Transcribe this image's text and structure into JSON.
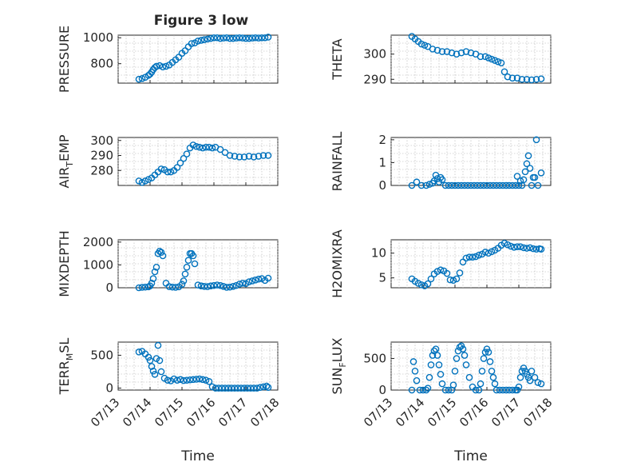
{
  "figure": {
    "title": "Figure 3 low",
    "accent_color": "#0072bd"
  },
  "chart_data": [
    {
      "type": "scatter",
      "ylabel": "PRESSURE",
      "xlabel": "",
      "xlim": [
        0,
        5
      ],
      "ylim": [
        650,
        1020
      ],
      "yticks": [
        800,
        1000
      ],
      "xticks": [
        0,
        1,
        2,
        3,
        4,
        5
      ],
      "show_x_ticklabels": false,
      "grid": true,
      "x": [
        0.65,
        0.75,
        0.85,
        0.95,
        1.0,
        1.05,
        1.1,
        1.15,
        1.2,
        1.3,
        1.4,
        1.5,
        1.6,
        1.7,
        1.8,
        1.9,
        2.0,
        2.1,
        2.2,
        2.3,
        2.4,
        2.5,
        2.6,
        2.7,
        2.8,
        2.9,
        3.0,
        3.1,
        3.2,
        3.3,
        3.4,
        3.5,
        3.6,
        3.7,
        3.8,
        3.9,
        4.0,
        4.1,
        4.2,
        4.3,
        4.4,
        4.5,
        4.6,
        4.7
      ],
      "y": [
        680,
        685,
        695,
        710,
        720,
        735,
        755,
        770,
        780,
        785,
        775,
        780,
        790,
        810,
        830,
        850,
        880,
        900,
        930,
        955,
        960,
        975,
        980,
        985,
        990,
        995,
        1000,
        1000,
        995,
        998,
        1000,
        995,
        995,
        998,
        1000,
        998,
        995,
        995,
        998,
        1000,
        998,
        1000,
        1000,
        1005
      ]
    },
    {
      "type": "scatter",
      "ylabel": "THETA",
      "xlabel": "",
      "xlim": [
        0,
        5
      ],
      "ylim": [
        288.5,
        307.5
      ],
      "yticks": [
        290,
        300
      ],
      "xticks": [
        0,
        1,
        2,
        3,
        4,
        5
      ],
      "show_x_ticklabels": false,
      "grid": true,
      "x": [
        0.65,
        0.75,
        0.85,
        0.95,
        1.05,
        1.15,
        1.3,
        1.45,
        1.6,
        1.75,
        1.9,
        2.05,
        2.2,
        2.35,
        2.5,
        2.65,
        2.8,
        2.95,
        3.05,
        3.15,
        3.25,
        3.35,
        3.45,
        3.55,
        3.65,
        3.8,
        3.95,
        4.1,
        4.25,
        4.4,
        4.55,
        4.7
      ],
      "y": [
        307,
        306,
        305,
        304,
        303.5,
        303,
        302,
        301.5,
        301,
        301,
        300.5,
        300,
        300.5,
        301,
        300.5,
        300,
        299,
        299,
        298.5,
        298,
        297.5,
        297,
        296.5,
        293,
        291,
        290.5,
        290.5,
        290,
        290,
        289.8,
        290,
        290.2
      ]
    },
    {
      "type": "scatter",
      "ylabel": "AIR_TEMP",
      "ylabel_main": "AIR",
      "ylabel_sub": "T",
      "ylabel_tail": "EMP",
      "xlabel": "",
      "xlim": [
        0,
        5
      ],
      "ylim": [
        270,
        302
      ],
      "yticks": [
        280,
        290,
        300
      ],
      "xticks": [
        0,
        1,
        2,
        3,
        4,
        5
      ],
      "show_x_ticklabels": false,
      "grid": true,
      "x": [
        0.65,
        0.75,
        0.85,
        0.95,
        1.05,
        1.15,
        1.25,
        1.35,
        1.45,
        1.55,
        1.65,
        1.75,
        1.85,
        1.95,
        2.05,
        2.15,
        2.25,
        2.35,
        2.45,
        2.55,
        2.65,
        2.75,
        2.85,
        2.95,
        3.05,
        3.2,
        3.35,
        3.5,
        3.65,
        3.8,
        3.95,
        4.1,
        4.25,
        4.4,
        4.55,
        4.7
      ],
      "y": [
        273,
        272,
        273,
        274,
        275,
        277,
        279,
        281,
        280.5,
        279,
        279,
        280,
        282,
        285,
        288,
        291,
        295,
        297,
        296,
        295.5,
        295,
        295.5,
        295.5,
        295,
        295.5,
        294,
        292,
        290,
        289.5,
        289,
        289,
        289.5,
        289,
        289.5,
        290,
        290
      ]
    },
    {
      "type": "scatter",
      "ylabel": "RAINFALL",
      "xlabel": "",
      "xlim": [
        0,
        5
      ],
      "ylim": [
        0,
        2.1
      ],
      "yticks": [
        0,
        1,
        2
      ],
      "xticks": [
        0,
        1,
        2,
        3,
        4,
        5
      ],
      "show_x_ticklabels": false,
      "grid": true,
      "x": [
        0.65,
        0.8,
        0.95,
        1.1,
        1.2,
        1.3,
        1.35,
        1.4,
        1.45,
        1.5,
        1.55,
        1.6,
        1.7,
        1.8,
        1.9,
        2.0,
        2.1,
        2.2,
        2.3,
        2.4,
        2.5,
        2.6,
        2.7,
        2.8,
        2.9,
        3.0,
        3.1,
        3.2,
        3.3,
        3.4,
        3.5,
        3.6,
        3.7,
        3.8,
        3.9,
        3.95,
        4.0,
        4.05,
        4.1,
        4.15,
        4.2,
        4.25,
        4.3,
        4.35,
        4.4,
        4.45,
        4.5,
        4.55,
        4.6,
        4.7
      ],
      "y": [
        0,
        0.15,
        0,
        0,
        0.05,
        0.1,
        0.2,
        0.45,
        0.3,
        0.15,
        0.35,
        0.25,
        0,
        0,
        0,
        0,
        0,
        0,
        0,
        0,
        0,
        0,
        0,
        0,
        0,
        0,
        0,
        0,
        0,
        0,
        0,
        0,
        0,
        0,
        0,
        0.4,
        0,
        0.2,
        0,
        0.25,
        0.6,
        0.95,
        1.3,
        0.75,
        0,
        0.35,
        0.35,
        2.0,
        0,
        0.55
      ]
    },
    {
      "type": "scatter",
      "ylabel": "MIXDEPTH",
      "xlabel": "",
      "xlim": [
        0,
        5
      ],
      "ylim": [
        0,
        2100
      ],
      "yticks": [
        0,
        1000,
        2000
      ],
      "xticks": [
        0,
        1,
        2,
        3,
        4,
        5
      ],
      "show_x_ticklabels": false,
      "grid": true,
      "x": [
        0.65,
        0.75,
        0.85,
        0.95,
        1.0,
        1.05,
        1.1,
        1.15,
        1.2,
        1.25,
        1.3,
        1.35,
        1.4,
        1.5,
        1.6,
        1.7,
        1.8,
        1.9,
        2.0,
        2.05,
        2.1,
        2.15,
        2.2,
        2.25,
        2.3,
        2.35,
        2.4,
        2.5,
        2.6,
        2.7,
        2.8,
        2.9,
        3.0,
        3.1,
        3.2,
        3.3,
        3.4,
        3.5,
        3.6,
        3.7,
        3.8,
        3.9,
        4.0,
        4.1,
        4.2,
        4.3,
        4.4,
        4.5,
        4.6,
        4.7
      ],
      "y": [
        0,
        20,
        30,
        40,
        80,
        200,
        400,
        700,
        900,
        1500,
        1600,
        1550,
        1400,
        200,
        50,
        30,
        20,
        40,
        150,
        300,
        600,
        900,
        1200,
        1500,
        1500,
        1400,
        1050,
        120,
        80,
        60,
        50,
        80,
        100,
        120,
        100,
        60,
        20,
        30,
        60,
        100,
        160,
        200,
        180,
        260,
        300,
        340,
        380,
        400,
        320,
        420
      ]
    },
    {
      "type": "scatter",
      "ylabel": "H2OMIXRA",
      "xlabel": "",
      "xlim": [
        0,
        5
      ],
      "ylim": [
        3,
        12.7
      ],
      "yticks": [
        5,
        10
      ],
      "xticks": [
        0,
        1,
        2,
        3,
        4,
        5
      ],
      "show_x_ticklabels": false,
      "grid": true,
      "x": [
        0.65,
        0.75,
        0.85,
        0.95,
        1.05,
        1.15,
        1.25,
        1.35,
        1.45,
        1.55,
        1.65,
        1.75,
        1.85,
        1.95,
        2.05,
        2.15,
        2.25,
        2.35,
        2.45,
        2.55,
        2.65,
        2.75,
        2.85,
        2.95,
        3.05,
        3.15,
        3.25,
        3.35,
        3.45,
        3.55,
        3.65,
        3.75,
        3.85,
        3.95,
        4.05,
        4.15,
        4.25,
        4.35,
        4.45,
        4.55,
        4.65,
        4.7
      ],
      "y": [
        4.8,
        4.3,
        3.9,
        3.6,
        3.4,
        3.8,
        4.8,
        5.8,
        6.3,
        6.6,
        6.4,
        5.9,
        4.6,
        4.5,
        4.8,
        6.0,
        8.2,
        9.0,
        9.2,
        9.2,
        9.3,
        9.6,
        9.8,
        10.2,
        10.0,
        10.3,
        10.6,
        11.0,
        11.6,
        12.0,
        11.7,
        11.4,
        11.2,
        11.3,
        11.3,
        11.1,
        11.0,
        11.1,
        10.9,
        10.8,
        10.9,
        10.8
      ]
    },
    {
      "type": "scatter",
      "ylabel": "TERR_MSL",
      "ylabel_main": "TERR",
      "ylabel_sub": "M",
      "ylabel_tail": "SL",
      "xlabel": "Time",
      "xlim": [
        0,
        5
      ],
      "ylim": [
        -30,
        700
      ],
      "yticks": [
        0,
        500
      ],
      "xticks": [
        0,
        1,
        2,
        3,
        4,
        5
      ],
      "xticklabels": [
        "07/13",
        "07/14",
        "07/15",
        "07/16",
        "07/17",
        "07/18"
      ],
      "show_x_ticklabels": true,
      "grid": true,
      "x": [
        0.65,
        0.75,
        0.85,
        0.95,
        1.0,
        1.05,
        1.1,
        1.15,
        1.2,
        1.25,
        1.3,
        1.35,
        1.45,
        1.55,
        1.65,
        1.75,
        1.85,
        1.95,
        2.05,
        2.15,
        2.25,
        2.35,
        2.45,
        2.55,
        2.65,
        2.75,
        2.85,
        2.95,
        3.05,
        3.15,
        3.25,
        3.35,
        3.45,
        3.55,
        3.65,
        3.75,
        3.85,
        3.95,
        4.05,
        4.15,
        4.25,
        4.35,
        4.45,
        4.55,
        4.65,
        4.7
      ],
      "y": [
        550,
        560,
        520,
        470,
        420,
        330,
        260,
        210,
        450,
        650,
        420,
        250,
        150,
        120,
        110,
        140,
        120,
        130,
        115,
        120,
        125,
        130,
        135,
        140,
        130,
        120,
        100,
        20,
        0,
        0,
        0,
        0,
        0,
        0,
        0,
        0,
        0,
        0,
        0,
        0,
        0,
        0,
        10,
        20,
        30,
        10
      ]
    },
    {
      "type": "scatter",
      "ylabel": "SUN_FLUX",
      "ylabel_main": "SUN",
      "ylabel_sub": "F",
      "ylabel_tail": "LUX",
      "xlabel": "Time",
      "xlim": [
        0,
        5
      ],
      "ylim": [
        0,
        760
      ],
      "yticks": [
        0,
        500
      ],
      "xticks": [
        0,
        1,
        2,
        3,
        4,
        5
      ],
      "xticklabels": [
        "07/13",
        "07/14",
        "07/15",
        "07/16",
        "07/17",
        "07/18"
      ],
      "show_x_ticklabels": true,
      "grid": true,
      "x": [
        0.65,
        0.7,
        0.75,
        0.8,
        0.9,
        1.0,
        1.1,
        1.15,
        1.2,
        1.25,
        1.3,
        1.35,
        1.4,
        1.45,
        1.5,
        1.55,
        1.6,
        1.7,
        1.8,
        1.9,
        1.95,
        2.0,
        2.05,
        2.1,
        2.15,
        2.2,
        2.25,
        2.3,
        2.35,
        2.45,
        2.55,
        2.65,
        2.75,
        2.8,
        2.85,
        2.9,
        2.95,
        3.0,
        3.05,
        3.1,
        3.15,
        3.2,
        3.25,
        3.3,
        3.4,
        3.5,
        3.6,
        3.7,
        3.8,
        3.9,
        3.95,
        4.0,
        4.05,
        4.1,
        4.15,
        4.2,
        4.25,
        4.3,
        4.35,
        4.4,
        4.5,
        4.6,
        4.7
      ],
      "y": [
        0,
        450,
        300,
        150,
        0,
        0,
        0,
        30,
        200,
        400,
        550,
        620,
        650,
        550,
        400,
        250,
        100,
        0,
        0,
        0,
        80,
        300,
        500,
        620,
        680,
        700,
        650,
        550,
        400,
        200,
        50,
        0,
        0,
        100,
        300,
        500,
        600,
        650,
        600,
        450,
        300,
        200,
        100,
        0,
        0,
        0,
        0,
        0,
        0,
        0,
        0,
        50,
        200,
        300,
        350,
        300,
        250,
        200,
        150,
        300,
        200,
        120,
        100
      ]
    }
  ]
}
